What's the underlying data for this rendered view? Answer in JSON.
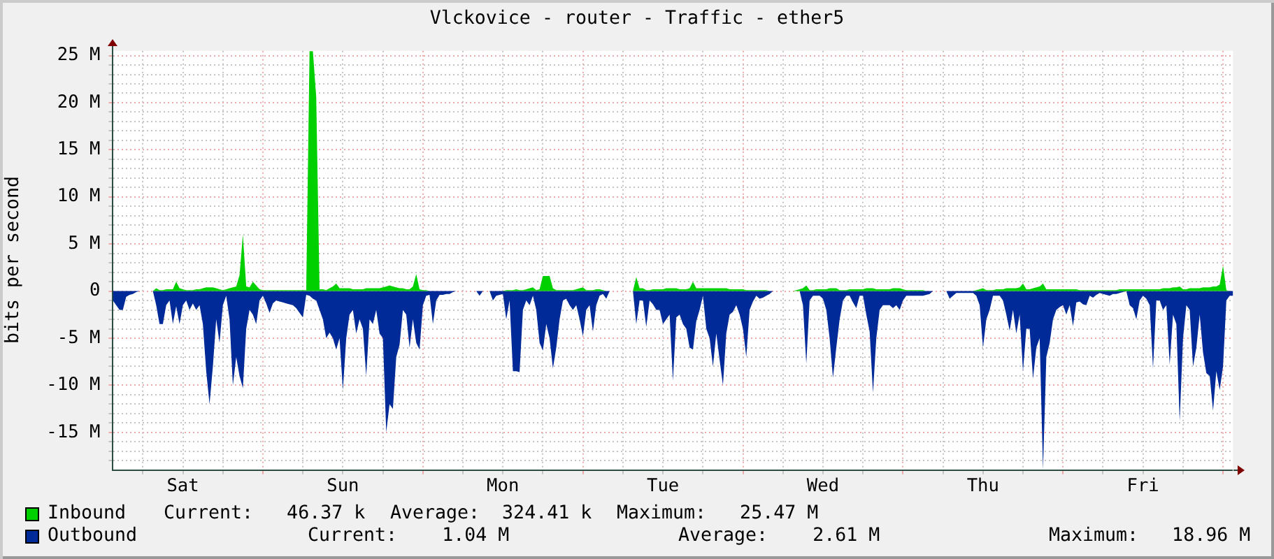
{
  "chart_data": {
    "type": "area",
    "title": "Vlckovice - router - Traffic - ether5",
    "ylabel": "bits per second",
    "categories": [
      null,
      null,
      null,
      null,
      null,
      null,
      null,
      null,
      null,
      null,
      null,
      null,
      null,
      null,
      null,
      null,
      null,
      null,
      null,
      null,
      null,
      "Sat",
      null,
      null,
      null,
      null,
      null,
      null,
      null,
      null,
      null,
      null,
      null,
      null,
      null,
      null,
      null,
      null,
      null,
      null,
      null,
      null,
      null,
      null,
      null,
      null,
      null,
      null,
      null,
      null,
      null,
      null,
      null,
      null,
      null,
      null,
      null,
      null,
      null,
      null,
      null,
      null,
      null,
      null,
      null,
      null,
      null,
      null,
      null,
      "Sun",
      null,
      null,
      null,
      null,
      null,
      null,
      null,
      null,
      null,
      null,
      null,
      null,
      null,
      null,
      null,
      null,
      null,
      null,
      null,
      null,
      null,
      null,
      null,
      null,
      null,
      null,
      null,
      null,
      null,
      null,
      null,
      null,
      null,
      null,
      null,
      null,
      null,
      null,
      null,
      null,
      null,
      null,
      null,
      null,
      null,
      null,
      null,
      "Mon",
      null,
      null,
      null,
      null,
      null,
      null,
      null,
      null,
      null,
      null,
      null,
      null,
      null,
      null,
      null,
      null,
      null,
      null,
      null,
      null,
      null,
      null,
      null,
      null,
      null,
      null,
      null,
      null,
      null,
      null,
      null,
      null,
      null,
      null,
      null,
      null,
      null,
      null,
      null,
      null,
      null,
      null,
      null,
      null,
      null,
      null,
      null,
      "Tue",
      null,
      null,
      null,
      null,
      null,
      null,
      null,
      null,
      null,
      null,
      null,
      null,
      null,
      null,
      null,
      null,
      null,
      null,
      null,
      null,
      null,
      null,
      null,
      null,
      null,
      null,
      null,
      null,
      null,
      null,
      null,
      null,
      null,
      null,
      null,
      null,
      null,
      null,
      null,
      null,
      null,
      null,
      null,
      null,
      null,
      null,
      null,
      "Wed",
      null,
      null,
      null,
      null,
      null,
      null,
      null,
      null,
      null,
      null,
      null,
      null,
      null,
      null,
      null,
      null,
      null,
      null,
      null,
      null,
      null,
      null,
      null,
      null,
      null,
      null,
      null,
      null,
      null,
      null,
      null,
      null,
      null,
      null,
      null,
      null,
      null,
      null,
      null,
      null,
      null,
      null,
      null,
      null,
      null,
      null,
      null,
      "Thu",
      null,
      null,
      null,
      null,
      null,
      null,
      null,
      null,
      null,
      null,
      null,
      null,
      null,
      null,
      null,
      null,
      null,
      null,
      null,
      null,
      null,
      null,
      null,
      null,
      null,
      null,
      null,
      null,
      null,
      null,
      null,
      null,
      null,
      null,
      null,
      null,
      null,
      null,
      null,
      null,
      null,
      null,
      null,
      null,
      null,
      null,
      null,
      "Fri",
      null,
      null,
      null,
      null,
      null,
      null,
      null,
      null,
      null,
      null,
      null,
      null,
      null,
      null,
      null,
      null,
      null,
      null,
      null,
      null,
      null,
      null,
      null,
      null,
      null,
      null,
      null
    ],
    "ylim": [
      -19,
      25.5
    ],
    "yticks": [
      {
        "value": -18,
        "label": null
      },
      {
        "value": -17,
        "label": null
      },
      {
        "value": -16,
        "label": null
      },
      {
        "value": -15,
        "label": "-15 M"
      },
      {
        "value": -14,
        "label": null
      },
      {
        "value": -13,
        "label": null
      },
      {
        "value": -12,
        "label": null
      },
      {
        "value": -11,
        "label": null
      },
      {
        "value": -10,
        "label": "-10 M"
      },
      {
        "value": -9,
        "label": null
      },
      {
        "value": -8,
        "label": null
      },
      {
        "value": -7,
        "label": null
      },
      {
        "value": -6,
        "label": null
      },
      {
        "value": -5,
        "label": "-5 M"
      },
      {
        "value": -4,
        "label": null
      },
      {
        "value": -3,
        "label": null
      },
      {
        "value": -2,
        "label": null
      },
      {
        "value": -1,
        "label": null
      },
      0,
      {
        "value": 1,
        "label": null
      },
      {
        "value": 2,
        "label": null
      },
      {
        "value": 3,
        "label": null
      },
      {
        "value": 4,
        "label": null
      },
      {
        "value": 5,
        "label": "5 M"
      },
      {
        "value": 6,
        "label": null
      },
      {
        "value": 7,
        "label": null
      },
      {
        "value": 8,
        "label": null
      },
      {
        "value": 9,
        "label": null
      },
      {
        "value": 10,
        "label": "10 M"
      },
      {
        "value": 11,
        "label": null
      },
      {
        "value": 12,
        "label": null
      },
      {
        "value": 13,
        "label": null
      },
      {
        "value": 14,
        "label": null
      },
      {
        "value": 15,
        "label": "15 M"
      },
      {
        "value": 16,
        "label": null
      },
      {
        "value": 17,
        "label": null
      },
      {
        "value": 18,
        "label": null
      },
      {
        "value": 19,
        "label": null
      },
      {
        "value": 20,
        "label": "20 M"
      },
      {
        "value": 21,
        "label": null
      },
      {
        "value": 22,
        "label": null
      },
      {
        "value": 23,
        "label": null
      },
      {
        "value": 24,
        "label": null
      },
      {
        "value": 25,
        "label": "25 M"
      }
    ],
    "grid": true,
    "legend": "bottom",
    "series": [
      {
        "name": "Inbound",
        "color": "#00cf00",
        "values": [
          0,
          0,
          0,
          0,
          0,
          0,
          0,
          0,
          0,
          0,
          0,
          0,
          0,
          0.3,
          0.1,
          0.1,
          0.2,
          0.2,
          0.2,
          1,
          0.3,
          0.2,
          0.1,
          0.1,
          0.1,
          0.2,
          0.2,
          0.3,
          0.4,
          0.4,
          0.4,
          0.3,
          0.2,
          0.1,
          0.2,
          0.3,
          0.4,
          0.5,
          1.7,
          6,
          0.5,
          0.4,
          1,
          0.6,
          0.2,
          0.1,
          0.1,
          0.1,
          0.1,
          0.1,
          0.1,
          0.1,
          0.1,
          0.1,
          0.1,
          0.1,
          0.1,
          0.1,
          0.1,
          25.47,
          25.47,
          20.6,
          0.2,
          0.2,
          0.1,
          0.3,
          0.5,
          0.8,
          0.3,
          0.3,
          0.3,
          0.3,
          0.2,
          0.2,
          0.2,
          0.2,
          0.3,
          0.3,
          0.3,
          0.3,
          0.3,
          0.4,
          0.5,
          0.6,
          0.5,
          0.4,
          0.3,
          0.3,
          0.2,
          0.2,
          0.5,
          1.8,
          0.2,
          0.1,
          0.1,
          0,
          0,
          0,
          0,
          0,
          0,
          0,
          0,
          0,
          0,
          0,
          0,
          0,
          0,
          0,
          0,
          0,
          0,
          0,
          0,
          0,
          0,
          0,
          0.1,
          0.1,
          0.1,
          0.2,
          0.1,
          0.1,
          0.2,
          0.3,
          0.4,
          0.1,
          0.2,
          1.6,
          1.6,
          1.6,
          0.3,
          0.1,
          0.1,
          0.1,
          0.1,
          0.1,
          0.1,
          0.2,
          0.3,
          0.4,
          0.1,
          0.1,
          0.1,
          0.2,
          0.2,
          0.1,
          0,
          0,
          0,
          0,
          0,
          0,
          0,
          0,
          0,
          1.5,
          0.3,
          0.3,
          0.1,
          0.1,
          0.2,
          0.2,
          0.2,
          0.2,
          0.3,
          0.3,
          0.3,
          0.3,
          0.2,
          0.2,
          0.2,
          0.3,
          1,
          0.3,
          0.3,
          0.3,
          0.3,
          0.3,
          0.3,
          0.3,
          0.3,
          0.3,
          0.3,
          0.2,
          0.2,
          0.2,
          0.2,
          0.2,
          0.1,
          0.1,
          0.1,
          0.1,
          0.1,
          0.1,
          0.1,
          0,
          0,
          0,
          0,
          0,
          0,
          0,
          0,
          0.1,
          0.2,
          0.3,
          0.6,
          0.1,
          0.1,
          0.2,
          0.2,
          0.2,
          0.2,
          0.3,
          0.3,
          0.3,
          0.1,
          0.1,
          0.1,
          0.2,
          0.2,
          0.2,
          0.2,
          0.2,
          0.3,
          0.3,
          0.3,
          0.2,
          0.2,
          0.2,
          0.2,
          0.2,
          0.3,
          0.3,
          0.3,
          0.2,
          0.1,
          0.1,
          0.1,
          0.1,
          0.1,
          0.1,
          0,
          0,
          0,
          0,
          0,
          0,
          0,
          0,
          0,
          0,
          0,
          0,
          0,
          0,
          0,
          0.1,
          0.2,
          0.3,
          0.1,
          0.1,
          0.1,
          0.2,
          0.2,
          0.2,
          0.3,
          0.3,
          0.3,
          0.3,
          0.4,
          0.8,
          0.2,
          0.2,
          0.3,
          0.4,
          0.5,
          0.8,
          0.2,
          0.2,
          0.2,
          0.2,
          0.2,
          0.2,
          0.2,
          0.2,
          0.2,
          0.2,
          0.1,
          0.1,
          0.1,
          0.1,
          0.1,
          0.1,
          0.1,
          0.1,
          0.1,
          0.1,
          0.1,
          0.1,
          0.2,
          0.2,
          0.2,
          0.2,
          0.2,
          0.2,
          0.2,
          0.2,
          0.2,
          0.2,
          0.2,
          0.2,
          0.2,
          0.3,
          0.3,
          0.3,
          0.4,
          0.4,
          0.5,
          0.2,
          0.2,
          0.3,
          0.3,
          0.3,
          0.3,
          0.4,
          0.4,
          0.4,
          0.5,
          0.5,
          0.7,
          2.7,
          0.1,
          0,
          0
        ]
      },
      {
        "name": "Outbound",
        "color": "#002a97",
        "values": [
          -1,
          -1.5,
          -2,
          -2,
          -0.6,
          -0.4,
          -0.3,
          -0.1,
          0,
          0,
          0,
          0,
          0,
          -1.5,
          -3.5,
          -3.5,
          -1.5,
          -1,
          -3.5,
          -1.6,
          -3.5,
          -1.5,
          -1,
          -2,
          -1.3,
          -2,
          -1.5,
          -3.5,
          -8.5,
          -12,
          -8,
          -3,
          -5.5,
          -1.5,
          -0.5,
          -3,
          -10,
          -7,
          -9,
          -10.3,
          -4,
          -2,
          -2.5,
          -3.5,
          -1,
          -0.5,
          -1.3,
          -2.3,
          -1.3,
          -1,
          -1.1,
          -1.2,
          -1.3,
          -1.4,
          -1.5,
          -1.8,
          -2.3,
          -2.8,
          -0.4,
          -0.5,
          -0.8,
          -1,
          -2,
          -3,
          -5,
          -4.4,
          -5,
          -6.2,
          -5,
          -10.5,
          -5,
          -2.5,
          -2,
          -4.5,
          -3,
          -4,
          -9,
          -3,
          -3.5,
          -2,
          -4.5,
          -5,
          -15,
          -12,
          -12.5,
          -7,
          -5.7,
          -2,
          -2.5,
          -6,
          -3,
          -5.5,
          -6.2,
          -1.5,
          -0.5,
          -0.4,
          -3.5,
          -1,
          -0.4,
          -0.4,
          -0.3,
          -0.3,
          -0.1,
          0,
          0,
          0,
          0,
          0,
          0,
          0,
          -0.5,
          0,
          0,
          0,
          -1,
          -0.5,
          -0.4,
          -0.3,
          -3,
          -1,
          -8.5,
          -8.5,
          -8.6,
          -2,
          -1,
          -1.5,
          -0.5,
          -2,
          -5.5,
          -6.3,
          -3.5,
          -5,
          -8.2,
          -6,
          -3,
          -1,
          -0.8,
          -1.5,
          -2,
          -1.5,
          -3,
          -4.8,
          -2,
          -1.5,
          -4.3,
          -1.5,
          -0.5,
          -0.3,
          -0.8,
          0,
          0,
          0,
          0,
          0,
          0,
          0,
          0,
          -3.5,
          -1,
          -1,
          -3.8,
          -1,
          -1.4,
          -2,
          -2,
          -3.5,
          -3,
          -2.5,
          -9.5,
          -2.8,
          -2.5,
          -3.5,
          -4,
          -6,
          -6.2,
          -3.2,
          -2,
          -0.5,
          -4,
          -5,
          -8,
          -4.5,
          -7.3,
          -10,
          -4.5,
          -2.5,
          -2.2,
          -1.5,
          -2.5,
          -4,
          -7,
          -2,
          -1.1,
          -0.5,
          -0.8,
          -0.7,
          -0.5,
          -0.3,
          0,
          0,
          0,
          0,
          0,
          0,
          0,
          0,
          0,
          -1.5,
          -7.7,
          -1,
          -0.5,
          -0.5,
          -0.5,
          -0.8,
          -2,
          -5,
          -9.2,
          -6,
          -3,
          -1,
          -0.5,
          -0.5,
          -1.2,
          -1.8,
          -0.5,
          -0.5,
          -2.5,
          -4.3,
          -10.8,
          -5,
          -2,
          -1.5,
          -1.5,
          -1.5,
          -1.8,
          -1.5,
          -2,
          -1,
          -0.5,
          -0.5,
          -0.5,
          -0.5,
          -0.5,
          -0.5,
          -0.4,
          -0.3,
          0,
          0,
          0,
          0,
          0,
          -0.8,
          -0.5,
          -0.2,
          -0.2,
          -0.2,
          -0.2,
          -0.2,
          -0.2,
          -0.5,
          -1.5,
          -6,
          -3,
          -2,
          -0.5,
          -0.5,
          -0.5,
          -1,
          -2.5,
          -4.2,
          -2,
          -4.5,
          -2.5,
          -8.5,
          -4,
          -4,
          -9.3,
          -6,
          -5,
          -18.96,
          -7,
          -5.5,
          -3,
          -2,
          -1.7,
          -1.5,
          -2.5,
          -1.5,
          -3.7,
          -1.2,
          -1.1,
          -1.4,
          -1.5,
          -0.5,
          -0.7,
          -0.4,
          -0.2,
          -0.3,
          -0.4,
          -0.5,
          -0.3,
          -0.3,
          -0.2,
          -0.1,
          0,
          -1.5,
          -1.8,
          -3,
          -1,
          -0.5,
          -0.8,
          -1.5,
          -8.2,
          -1,
          -1,
          -2,
          -1.5,
          -7.8,
          -2.5,
          -3.5,
          -13.8,
          -5,
          -1.5,
          -2,
          -8,
          -6,
          -2.5,
          -6.5,
          -8.7,
          -9,
          -12.7,
          -8.5,
          -10.5,
          -8,
          -1,
          -0.5,
          -0.5
        ]
      }
    ],
    "annotations": [
      "Current:   46.37 k",
      "Average:  324.41 k",
      "Maximum:   25.47 M",
      "Current:    1.04 M",
      "Average:    2.61 M",
      "Maximum:   18.96 M"
    ]
  }
}
